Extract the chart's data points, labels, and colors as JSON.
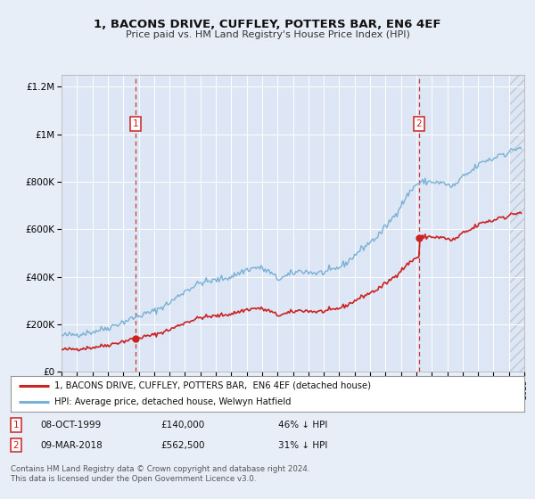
{
  "title": "1, BACONS DRIVE, CUFFLEY, POTTERS BAR, EN6 4EF",
  "subtitle": "Price paid vs. HM Land Registry's House Price Index (HPI)",
  "bg_color": "#e8eef7",
  "plot_bg_color": "#dce6f5",
  "grid_color": "#ffffff",
  "hpi_color": "#7ab0d4",
  "price_color": "#cc2222",
  "sale1_date": 1999.78,
  "sale1_price": 140000,
  "sale2_date": 2018.18,
  "sale2_price": 562500,
  "xmin": 1995,
  "xmax": 2025,
  "ymin": 0,
  "ymax": 1250000,
  "yticks": [
    0,
    200000,
    400000,
    600000,
    800000,
    1000000,
    1200000
  ],
  "ytick_labels": [
    "£0",
    "£200K",
    "£400K",
    "£600K",
    "£800K",
    "£1M",
    "£1.2M"
  ],
  "legend_line1": "1, BACONS DRIVE, CUFFLEY, POTTERS BAR,  EN6 4EF (detached house)",
  "legend_line2": "HPI: Average price, detached house, Welwyn Hatfield",
  "table_row1": [
    "1",
    "08-OCT-1999",
    "£140,000",
    "46% ↓ HPI"
  ],
  "table_row2": [
    "2",
    "09-MAR-2018",
    "£562,500",
    "31% ↓ HPI"
  ],
  "footnote1": "Contains HM Land Registry data © Crown copyright and database right 2024.",
  "footnote2": "This data is licensed under the Open Government Licence v3.0.",
  "hatch_start": 2024.0
}
